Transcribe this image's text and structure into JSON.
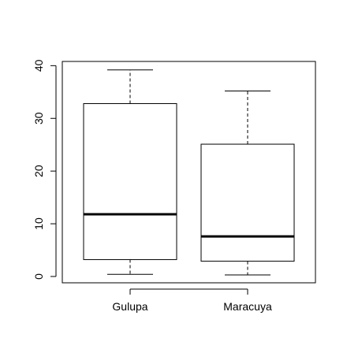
{
  "chart_data": {
    "type": "boxplot",
    "categories": [
      "Gulupa",
      "Maracuya"
    ],
    "boxes": [
      {
        "label": "Gulupa",
        "min": 0.4,
        "q1": 3.2,
        "median": 11.8,
        "q3": 32.8,
        "max": 39.2
      },
      {
        "label": "Maracuya",
        "min": 0.3,
        "q1": 2.9,
        "median": 7.6,
        "q3": 25.1,
        "max": 35.2
      }
    ],
    "yticks": [
      0,
      10,
      20,
      30,
      40
    ],
    "ylim": [
      -1.2,
      40.8
    ],
    "title": "",
    "xlabel": "",
    "ylabel": "",
    "grid": false,
    "colors": {
      "box_fill": "#ffffff",
      "stroke": "#000000"
    }
  }
}
